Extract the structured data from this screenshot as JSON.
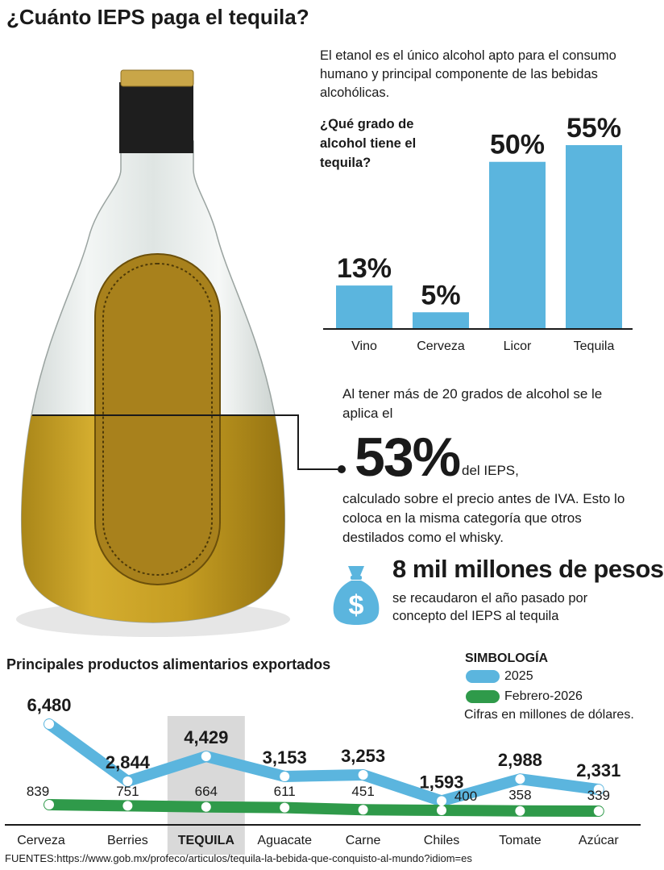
{
  "title": "¿Cuánto IEPS paga el tequila?",
  "intro": "El etanol es el único alcohol apto para el consumo humano y principal componente de las bebidas alcohólicas.",
  "ieps": {
    "intro": "Al tener más de 20 grados de alcohol se le aplica el",
    "percent": "53%",
    "suffix": "del IEPS,",
    "detail": "calculado sobre el precio antes de IVA. Esto lo coloca en la misma categoría que otros destilados como el whisky."
  },
  "money": {
    "title": "8 mil millones de pesos",
    "desc": "se recaudaron el año pasado por concepto del IEPS al tequila",
    "icon": "money-bag-icon"
  },
  "legend": {
    "heading": "SIMBOLOGÍA",
    "note": "Cifras en millones de dólares."
  },
  "sources": "FUENTES:https://www.gob.mx/profeco/articulos/tequila-la-bebida-que-conquisto-al-mundo?idiom=es",
  "colors": {
    "blue": "#5bb5de",
    "green": "#2f9a4a",
    "liquid": "#c9a227",
    "highlight": "#d9d9d9"
  },
  "chart_data": [
    {
      "type": "bar",
      "title": "¿Qué grado de alcohol tiene el tequila?",
      "categories": [
        "Vino",
        "Cerveza",
        "Licor",
        "Tequila"
      ],
      "values": [
        13,
        5,
        50,
        55
      ],
      "value_labels": [
        "13%",
        "5%",
        "50%",
        "55%"
      ],
      "ylim": [
        0,
        55
      ]
    },
    {
      "type": "line",
      "title": "Principales productos alimentarios exportados",
      "categories": [
        "Cerveza",
        "Berries",
        "TEQUILA",
        "Aguacate",
        "Carne",
        "Chiles",
        "Tomate",
        "Azúcar"
      ],
      "highlight": "TEQUILA",
      "series": [
        {
          "name": "2025",
          "values": [
            6480,
            2844,
            4429,
            3153,
            3253,
            1593,
            2988,
            2331
          ],
          "labels": [
            "6,480",
            "2,844",
            "4,429",
            "3,153",
            "3,253",
            "1,593",
            "2,988",
            "2,331"
          ]
        },
        {
          "name": "Febrero-2026",
          "values": [
            839,
            751,
            664,
            611,
            451,
            400,
            358,
            339
          ],
          "labels": [
            "839",
            "751",
            "664",
            "611",
            "451",
            "400",
            "358",
            "339"
          ]
        }
      ]
    }
  ]
}
